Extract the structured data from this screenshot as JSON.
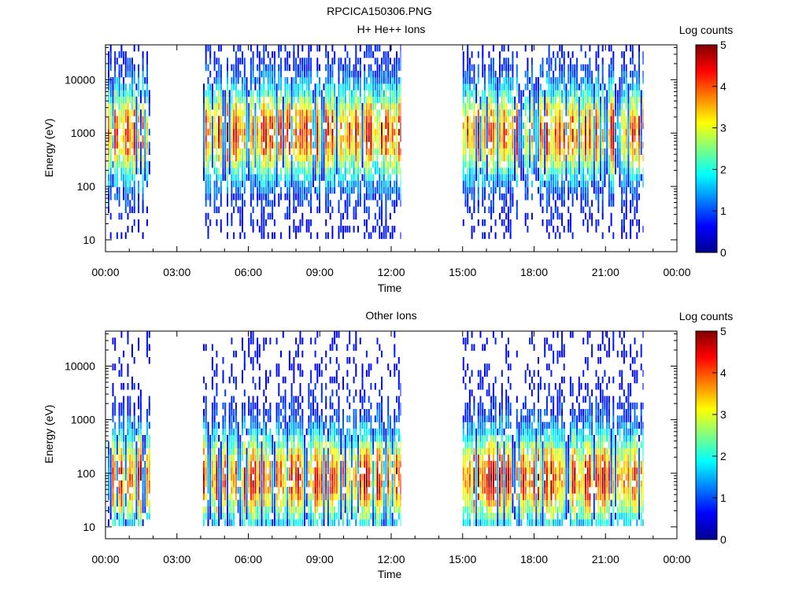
{
  "figure": {
    "title": "RPCICA150306.PNG"
  },
  "chart_data": [
    {
      "type": "heatmap",
      "title": "H+ He++ Ions",
      "xlabel": "Time",
      "ylabel": "Energy (eV)",
      "x_ticks": [
        "00:00",
        "03:00",
        "06:00",
        "09:00",
        "12:00",
        "15:00",
        "18:00",
        "21:00",
        "00:00"
      ],
      "x_range_hours": [
        0,
        24
      ],
      "y_scale": "log",
      "y_ticks": [
        10,
        100,
        1000,
        10000
      ],
      "y_range": [
        6,
        45000
      ],
      "colorbar": {
        "label": "Log counts",
        "min": 0,
        "max": 5,
        "ticks": [
          "0",
          "1",
          "2",
          "3",
          "4",
          "5"
        ]
      },
      "data_intervals_hours": [
        [
          0.1,
          1.9
        ],
        [
          4.1,
          12.4
        ],
        [
          15.0,
          22.6
        ]
      ],
      "peak_energy_ev": 1000,
      "grid": false
    },
    {
      "type": "heatmap",
      "title": "Other Ions",
      "xlabel": "Time",
      "ylabel": "Energy (eV)",
      "x_ticks": [
        "00:00",
        "03:00",
        "06:00",
        "09:00",
        "12:00",
        "15:00",
        "18:00",
        "21:00",
        "00:00"
      ],
      "x_range_hours": [
        0,
        24
      ],
      "y_scale": "log",
      "y_ticks": [
        10,
        100,
        1000,
        10000
      ],
      "y_range": [
        6,
        45000
      ],
      "colorbar": {
        "label": "Log counts",
        "min": 0,
        "max": 5,
        "ticks": [
          "0",
          "1",
          "2",
          "3",
          "4",
          "5"
        ]
      },
      "data_intervals_hours": [
        [
          0.1,
          1.9
        ],
        [
          4.1,
          12.4
        ],
        [
          15.0,
          22.6
        ]
      ],
      "peak_energy_ev": 80,
      "grid": false
    }
  ]
}
